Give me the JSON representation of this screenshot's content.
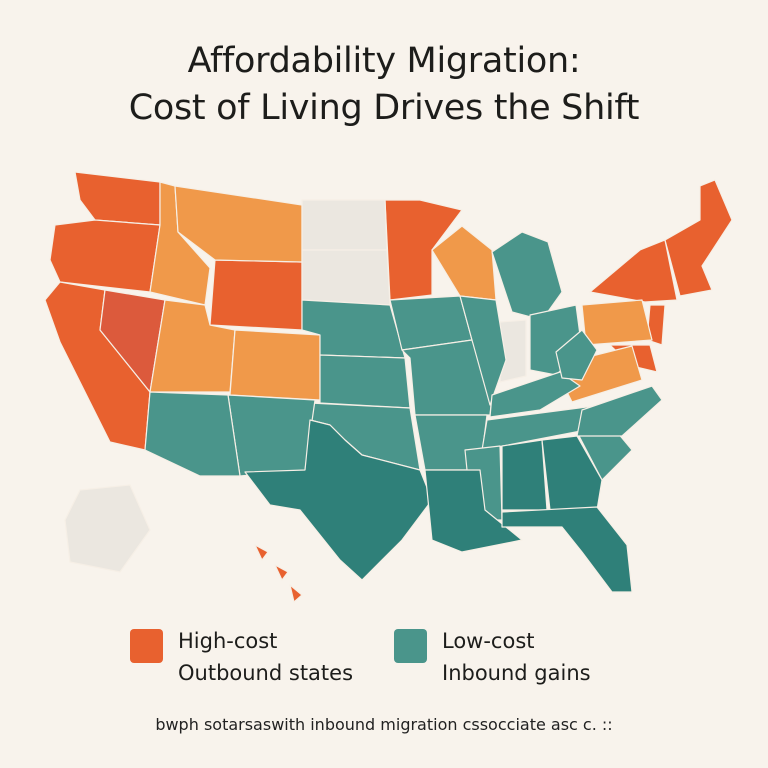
{
  "title": {
    "line1": "Affordability Migration:",
    "line2": "Cost of Living Drives the Shift"
  },
  "colors": {
    "background": "#f8f3ec",
    "high_cost": "#e8612f",
    "high_cost_nevada": "#dc5a3c",
    "moderate_high": "#f0994a",
    "low_cost": "#4a958b",
    "low_cost_dark": "#2f8079",
    "neutral": "#ebe7e0"
  },
  "legend": [
    {
      "line1": "High-cost",
      "line2": "Outbound states",
      "color": "#e8612f"
    },
    {
      "line1": "Low-cost",
      "line2": "Inbound gains",
      "color": "#4a958b"
    }
  ],
  "footnote": "bwph sotarsaswith inbound migration cssocciate asc c. ::",
  "map": {
    "states": {
      "WA": "high_cost",
      "OR": "high_cost",
      "CA": "high_cost",
      "NV": "high_cost_nevada",
      "WY": "high_cost",
      "MN": "high_cost",
      "NY": "high_cost",
      "NJ": "high_cost",
      "MD": "high_cost",
      "NE_REGION": "high_cost",
      "HI": "high_cost",
      "ID": "moderate_high",
      "MT": "moderate_high",
      "UT": "moderate_high",
      "CO": "moderate_high",
      "WI": "moderate_high",
      "PA": "moderate_high",
      "VA": "moderate_high",
      "ND": "neutral",
      "SD": "neutral",
      "IN": "neutral",
      "AK": "neutral",
      "NE": "low_cost",
      "KS": "low_cost",
      "OK": "low_cost",
      "NM": "low_cost",
      "AZ": "low_cost",
      "IA": "low_cost",
      "MO": "low_cost",
      "AR": "low_cost",
      "IL": "low_cost",
      "MI": "low_cost",
      "OH": "low_cost",
      "KY": "low_cost",
      "TN": "low_cost",
      "MS": "low_cost",
      "SC": "low_cost",
      "NC": "low_cost",
      "WV": "low_cost",
      "TX": "low_cost_dark",
      "LA": "low_cost_dark",
      "AL": "low_cost_dark",
      "GA": "low_cost_dark",
      "FL": "low_cost_dark"
    }
  }
}
